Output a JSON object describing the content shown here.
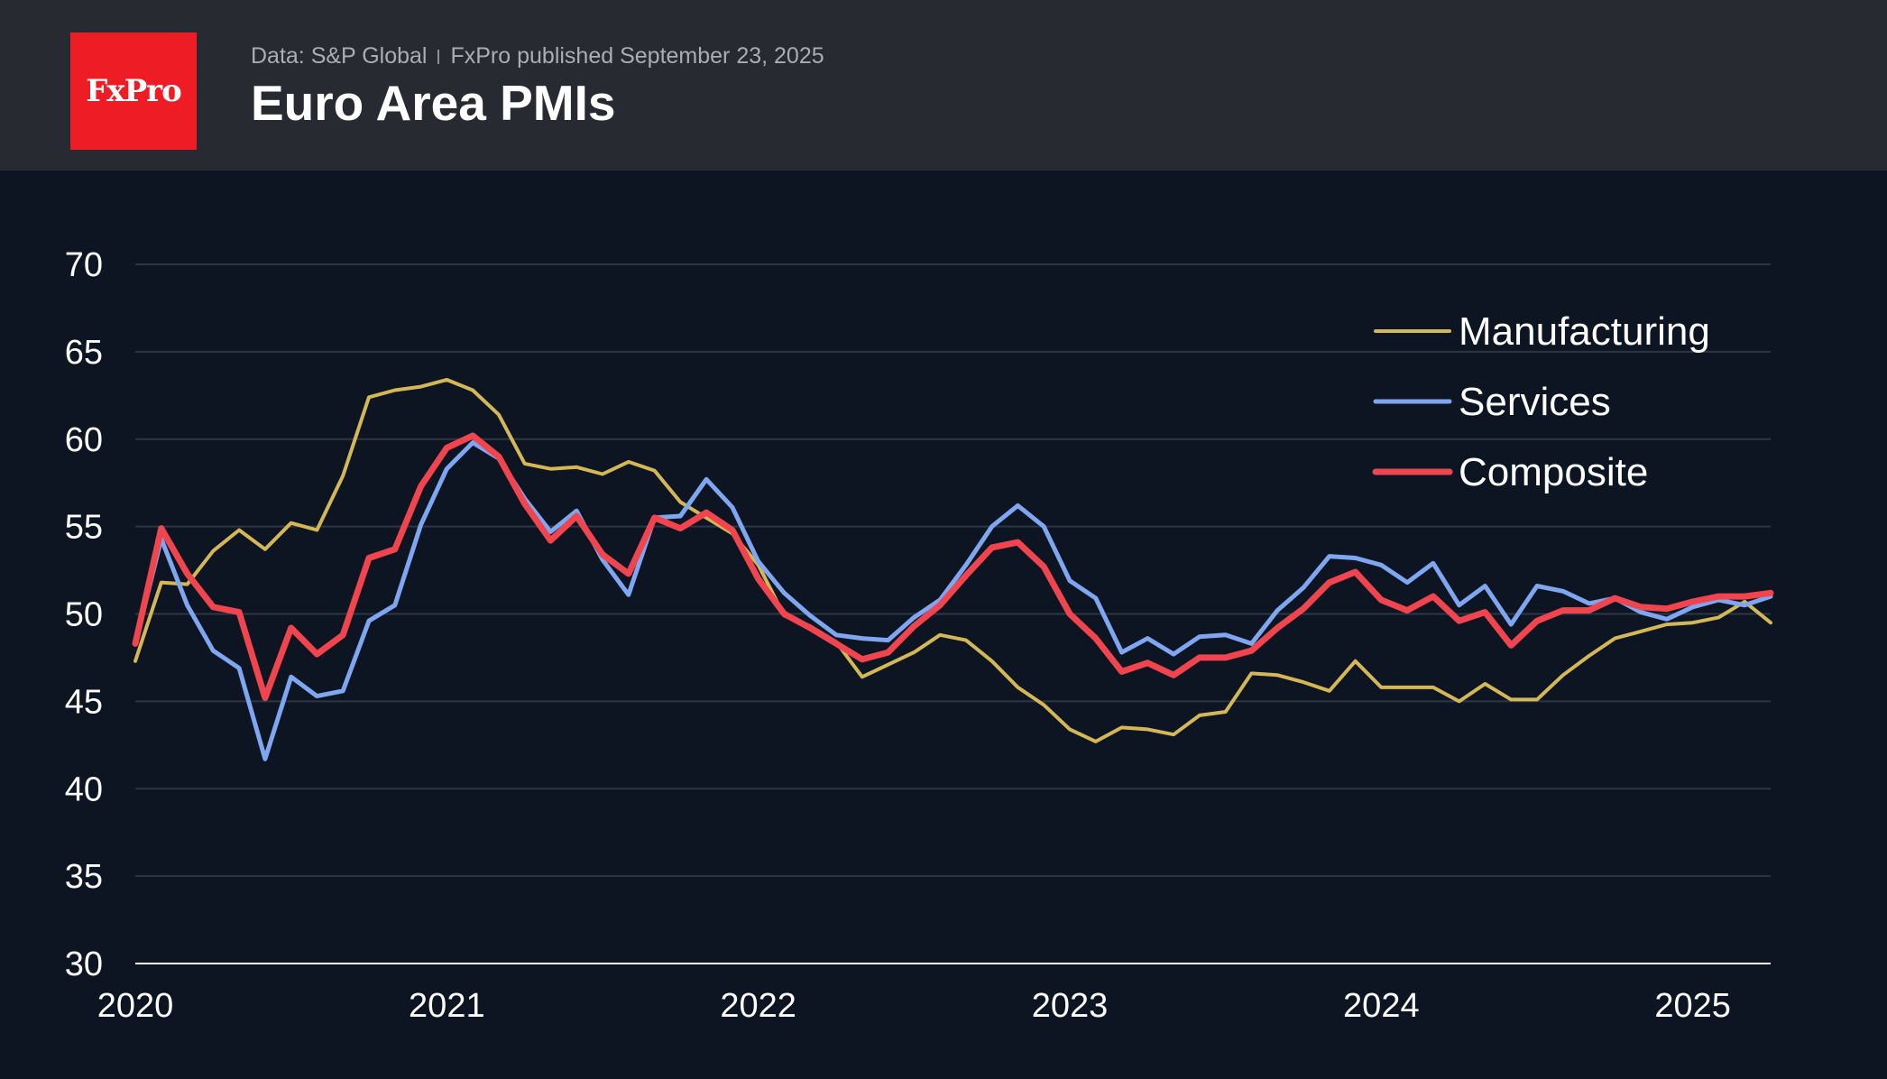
{
  "header": {
    "logo_text": "FxPro",
    "source": "Data: S&P Global",
    "published": "FxPro published September 23, 2025",
    "title": "Euro Area PMIs"
  },
  "chart_data": {
    "type": "line",
    "title": "Euro Area PMIs",
    "xlabel": "",
    "ylabel": "",
    "ylim": [
      30,
      70
    ],
    "xlim": [
      2020.0,
      2025.25
    ],
    "yticks": [
      "30",
      "35",
      "40",
      "45",
      "50",
      "55",
      "60",
      "65",
      "70"
    ],
    "xticks": [
      "2020",
      "2021",
      "2022",
      "2023",
      "2024",
      "2025"
    ],
    "grid": true,
    "legend_position": "top-right",
    "x_start": "2020-01",
    "x_step": "month",
    "series": [
      {
        "name": "Manufacturing",
        "color": "#d4b756",
        "values": [
          47.3,
          51.8,
          51.7,
          53.6,
          54.8,
          53.7,
          55.2,
          54.8,
          57.9,
          62.4,
          62.8,
          63.0,
          63.4,
          62.8,
          61.4,
          58.6,
          58.3,
          58.4,
          58.0,
          58.7,
          58.2,
          56.4,
          55.5,
          54.6,
          52.8,
          49.9,
          49.3,
          48.4,
          46.4,
          47.1,
          47.8,
          48.8,
          48.5,
          47.3,
          45.8,
          44.8,
          43.4,
          42.7,
          43.5,
          43.4,
          43.1,
          44.2,
          44.4,
          46.6,
          46.5,
          46.1,
          45.6,
          47.3,
          45.8,
          45.8,
          45.8,
          45.0,
          46.0,
          45.1,
          45.1,
          46.5,
          47.6,
          48.6,
          49.0,
          49.4,
          49.5,
          49.8,
          50.7,
          49.5
        ]
      },
      {
        "name": "Services",
        "color": "#7fa6f0",
        "values": [
          48.3,
          54.3,
          50.5,
          47.9,
          46.9,
          41.7,
          46.4,
          45.3,
          45.6,
          49.6,
          50.5,
          55.1,
          58.3,
          59.8,
          58.9,
          56.6,
          54.7,
          55.9,
          53.1,
          51.1,
          55.5,
          55.6,
          57.7,
          56.1,
          53.0,
          51.2,
          49.9,
          48.8,
          48.6,
          48.5,
          49.8,
          50.8,
          52.8,
          55.0,
          56.2,
          55.0,
          51.9,
          50.9,
          47.8,
          48.6,
          47.7,
          48.7,
          48.8,
          48.3,
          50.2,
          51.5,
          53.3,
          53.2,
          52.8,
          51.8,
          52.9,
          50.5,
          51.6,
          49.4,
          51.6,
          51.3,
          50.6,
          50.9,
          50.1,
          49.7,
          50.4,
          50.8,
          50.5,
          51.0
        ]
      },
      {
        "name": "Composite",
        "color": "#f0454f",
        "values": [
          48.3,
          54.9,
          52.3,
          50.4,
          50.1,
          45.2,
          49.2,
          47.7,
          48.8,
          53.2,
          53.7,
          57.3,
          59.5,
          60.2,
          59.0,
          56.3,
          54.2,
          55.6,
          53.4,
          52.3,
          55.5,
          54.9,
          55.8,
          54.8,
          52.0,
          50.0,
          49.2,
          48.3,
          47.4,
          47.8,
          49.3,
          50.5,
          52.2,
          53.8,
          54.1,
          52.7,
          50.0,
          48.6,
          46.7,
          47.2,
          46.5,
          47.5,
          47.5,
          47.9,
          49.2,
          50.3,
          51.8,
          52.4,
          50.8,
          50.2,
          51.0,
          49.6,
          50.1,
          48.2,
          49.6,
          50.2,
          50.2,
          50.9,
          50.4,
          50.3,
          50.7,
          51.0,
          51.0,
          51.2
        ]
      }
    ]
  }
}
